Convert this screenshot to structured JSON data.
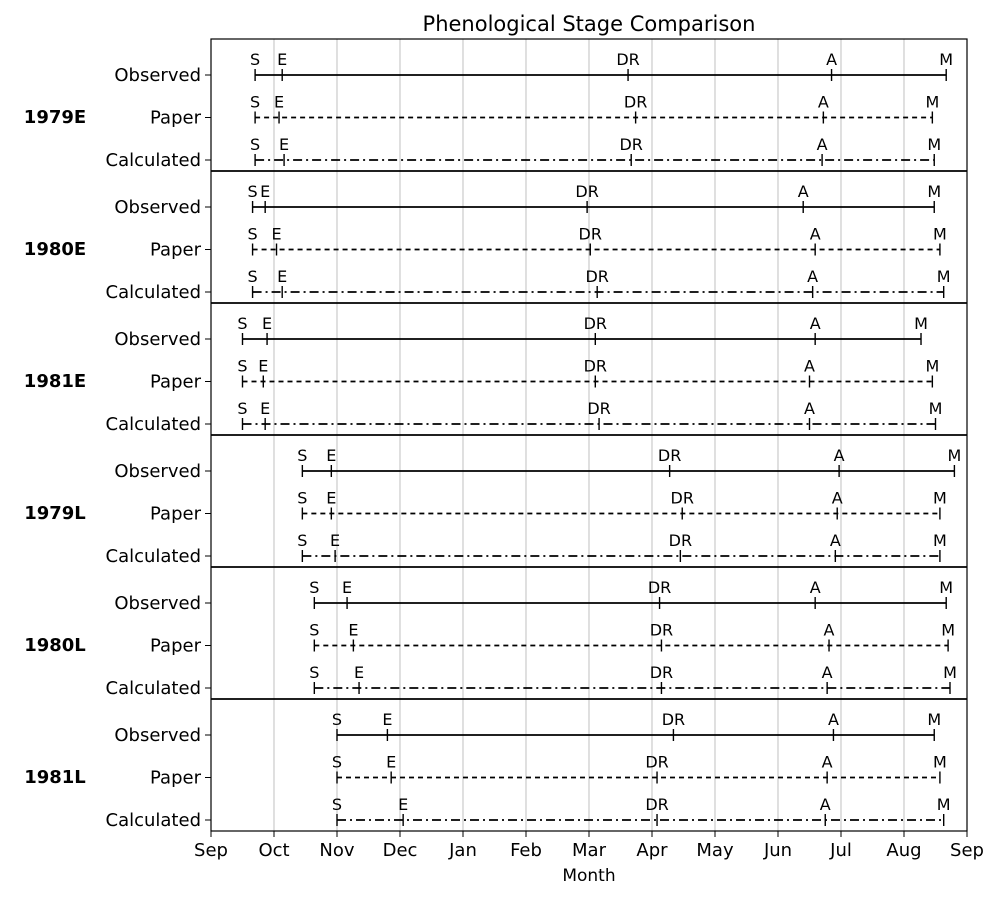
{
  "chart_data": {
    "type": "timeline",
    "title": "Phenological Stage Comparison",
    "xlabel": "Month",
    "x_ticks": [
      "Sep",
      "Oct",
      "Nov",
      "Dec",
      "Jan",
      "Feb",
      "Mar",
      "Apr",
      "May",
      "Jun",
      "Jul",
      "Aug",
      "Sep"
    ],
    "x_unit": "months since 1 Sep",
    "xlim": [
      0,
      12
    ],
    "grid": "vertical",
    "row_labels": [
      "Observed",
      "Paper",
      "Calculated"
    ],
    "line_styles": {
      "Observed": "solid",
      "Paper": "dashed",
      "Calculated": "dashdot"
    },
    "groups": [
      {
        "name": "1979E",
        "rows": [
          {
            "label": "Observed",
            "stages": [
              [
                "S",
                0.7
              ],
              [
                "E",
                1.13
              ],
              [
                "DR",
                6.62
              ],
              [
                "A",
                9.85
              ],
              [
                "M",
                11.67
              ]
            ]
          },
          {
            "label": "Paper",
            "stages": [
              [
                "S",
                0.7
              ],
              [
                "E",
                1.08
              ],
              [
                "DR",
                6.74
              ],
              [
                "A",
                9.72
              ],
              [
                "M",
                11.45
              ]
            ]
          },
          {
            "label": "Calculated",
            "stages": [
              [
                "S",
                0.7
              ],
              [
                "E",
                1.16
              ],
              [
                "DR",
                6.67
              ],
              [
                "A",
                9.7
              ],
              [
                "M",
                11.48
              ]
            ]
          }
        ]
      },
      {
        "name": "1980E",
        "rows": [
          {
            "label": "Observed",
            "stages": [
              [
                "S",
                0.66
              ],
              [
                "E",
                0.86
              ],
              [
                "DR",
                5.97
              ],
              [
                "A",
                9.4
              ],
              [
                "M",
                11.48
              ]
            ]
          },
          {
            "label": "Paper",
            "stages": [
              [
                "S",
                0.66
              ],
              [
                "E",
                1.04
              ],
              [
                "DR",
                6.02
              ],
              [
                "A",
                9.59
              ],
              [
                "M",
                11.57
              ]
            ]
          },
          {
            "label": "Calculated",
            "stages": [
              [
                "S",
                0.66
              ],
              [
                "E",
                1.13
              ],
              [
                "DR",
                6.13
              ],
              [
                "A",
                9.55
              ],
              [
                "M",
                11.63
              ]
            ]
          }
        ]
      },
      {
        "name": "1981E",
        "rows": [
          {
            "label": "Observed",
            "stages": [
              [
                "S",
                0.5
              ],
              [
                "E",
                0.89
              ],
              [
                "DR",
                6.1
              ],
              [
                "A",
                9.59
              ],
              [
                "M",
                11.27
              ]
            ]
          },
          {
            "label": "Paper",
            "stages": [
              [
                "S",
                0.5
              ],
              [
                "E",
                0.83
              ],
              [
                "DR",
                6.1
              ],
              [
                "A",
                9.5
              ],
              [
                "M",
                11.45
              ]
            ]
          },
          {
            "label": "Calculated",
            "stages": [
              [
                "S",
                0.5
              ],
              [
                "E",
                0.86
              ],
              [
                "DR",
                6.16
              ],
              [
                "A",
                9.5
              ],
              [
                "M",
                11.5
              ]
            ]
          }
        ]
      },
      {
        "name": "1979L",
        "rows": [
          {
            "label": "Observed",
            "stages": [
              [
                "S",
                1.45
              ],
              [
                "E",
                1.91
              ],
              [
                "DR",
                7.28
              ],
              [
                "A",
                9.97
              ],
              [
                "M",
                11.8
              ]
            ]
          },
          {
            "label": "Paper",
            "stages": [
              [
                "S",
                1.45
              ],
              [
                "E",
                1.91
              ],
              [
                "DR",
                7.48
              ],
              [
                "A",
                9.94
              ],
              [
                "M",
                11.57
              ]
            ]
          },
          {
            "label": "Calculated",
            "stages": [
              [
                "S",
                1.45
              ],
              [
                "E",
                1.97
              ],
              [
                "DR",
                7.45
              ],
              [
                "A",
                9.91
              ],
              [
                "M",
                11.57
              ]
            ]
          }
        ]
      },
      {
        "name": "1980L",
        "rows": [
          {
            "label": "Observed",
            "stages": [
              [
                "S",
                1.64
              ],
              [
                "E",
                2.16
              ],
              [
                "DR",
                7.12
              ],
              [
                "A",
                9.59
              ],
              [
                "M",
                11.67
              ]
            ]
          },
          {
            "label": "Paper",
            "stages": [
              [
                "S",
                1.64
              ],
              [
                "E",
                2.26
              ],
              [
                "DR",
                7.15
              ],
              [
                "A",
                9.81
              ],
              [
                "M",
                11.7
              ]
            ]
          },
          {
            "label": "Calculated",
            "stages": [
              [
                "S",
                1.64
              ],
              [
                "E",
                2.35
              ],
              [
                "DR",
                7.15
              ],
              [
                "A",
                9.78
              ],
              [
                "M",
                11.73
              ]
            ]
          }
        ]
      },
      {
        "name": "1981L",
        "rows": [
          {
            "label": "Observed",
            "stages": [
              [
                "S",
                2.0
              ],
              [
                "E",
                2.8
              ],
              [
                "DR",
                7.34
              ],
              [
                "A",
                9.88
              ],
              [
                "M",
                11.48
              ]
            ]
          },
          {
            "label": "Paper",
            "stages": [
              [
                "S",
                2.0
              ],
              [
                "E",
                2.86
              ],
              [
                "DR",
                7.08
              ],
              [
                "A",
                9.78
              ],
              [
                "M",
                11.57
              ]
            ]
          },
          {
            "label": "Calculated",
            "stages": [
              [
                "S",
                2.0
              ],
              [
                "E",
                3.05
              ],
              [
                "DR",
                7.08
              ],
              [
                "A",
                9.75
              ],
              [
                "M",
                11.63
              ]
            ]
          }
        ]
      }
    ]
  }
}
